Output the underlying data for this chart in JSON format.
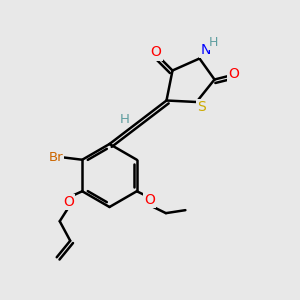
{
  "bg_color": "#e8e8e8",
  "atom_colors": {
    "C": "#000000",
    "H": "#5f9ea0",
    "N": "#0000ff",
    "O": "#ff0000",
    "S": "#ccaa00",
    "Br": "#cc6600"
  },
  "bond_color": "#000000",
  "bond_width": 1.8,
  "dbo": 0.12,
  "figsize": [
    3.0,
    3.0
  ],
  "dpi": 100,
  "xlim": [
    0,
    10
  ],
  "ylim": [
    0,
    10
  ],
  "font_size": 9.5
}
